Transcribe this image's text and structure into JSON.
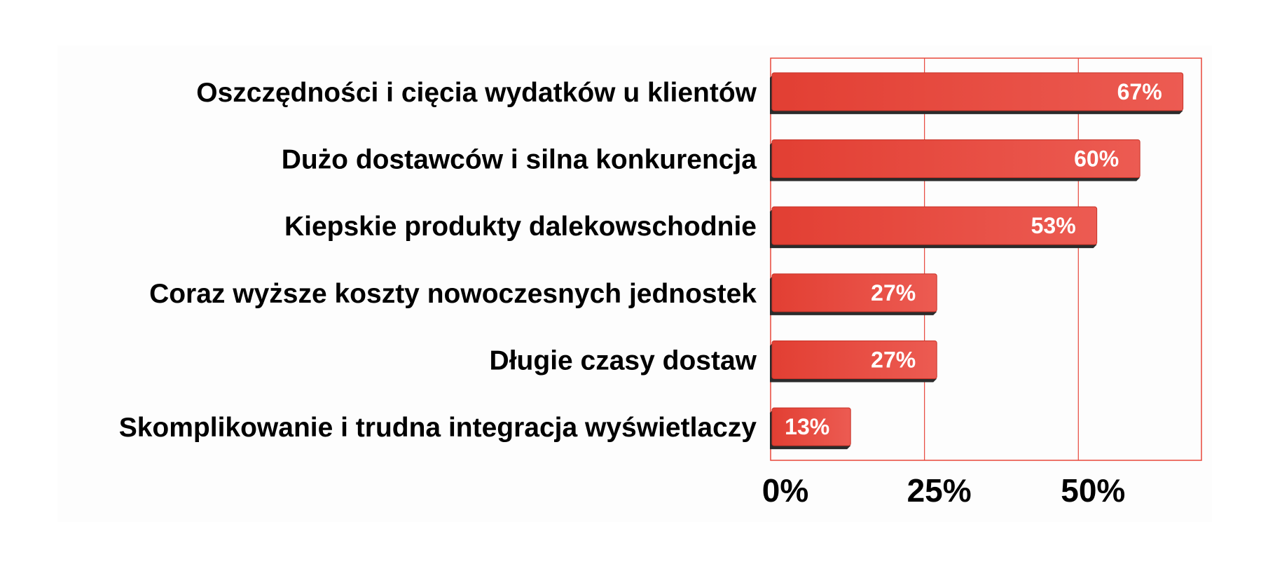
{
  "chart_data": {
    "type": "bar",
    "orientation": "horizontal",
    "title": "",
    "xlabel": "",
    "ylabel": "",
    "categories": [
      "Oszczędności i cięcia wydatków u klientów",
      "Dużo dostawców i silna konkurencja",
      "Kiepskie produkty dalekowschodnie",
      "Coraz wyższe koszty nowoczesnych jednostek",
      "Długie czasy dostaw",
      "Skomplikowanie i trudna integracja wyświetlaczy"
    ],
    "values": [
      67,
      60,
      53,
      27,
      27,
      13
    ],
    "value_labels": [
      "67%",
      "60%",
      "53%",
      "27%",
      "27%",
      "13%"
    ],
    "xlim": [
      0,
      70
    ],
    "x_ticks": [
      0,
      25,
      50
    ],
    "x_tick_labels": [
      "0%",
      "25%",
      "50%"
    ],
    "grid": true,
    "legend": "none",
    "colors": {
      "bar": "#e8463a",
      "bar_light": "#ea5a50",
      "bar_shadow": "#2b2b2b",
      "grid": "#e8463a",
      "plot_background": "#fdfdfd"
    }
  }
}
